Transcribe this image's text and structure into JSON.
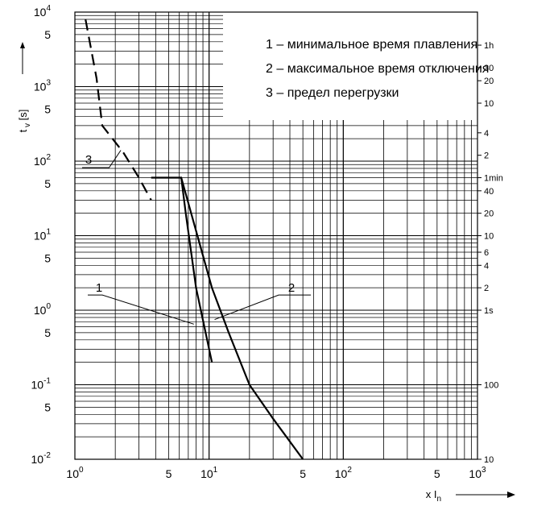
{
  "chart_data": {
    "type": "line",
    "title": "",
    "xlabel": "x I_n",
    "ylabel": "t_v [s]",
    "xscale": "log",
    "yscale": "log",
    "xlim": [
      1,
      1000
    ],
    "ylim": [
      0.01,
      10000
    ],
    "grid": true,
    "legend_position": "top-right",
    "x_ticks": [
      {
        "v": 1,
        "base": "10",
        "exp": "0"
      },
      {
        "v": 5,
        "base": "5",
        "exp": ""
      },
      {
        "v": 10,
        "base": "10",
        "exp": "1"
      },
      {
        "v": 50,
        "base": "5",
        "exp": ""
      },
      {
        "v": 100,
        "base": "10",
        "exp": "2"
      },
      {
        "v": 500,
        "base": "5",
        "exp": ""
      },
      {
        "v": 1000,
        "base": "10",
        "exp": "3"
      }
    ],
    "y_ticks": [
      {
        "v": 10000,
        "base": "10",
        "exp": "4"
      },
      {
        "v": 5000,
        "base": "5",
        "exp": ""
      },
      {
        "v": 1000,
        "base": "10",
        "exp": "3"
      },
      {
        "v": 500,
        "base": "5",
        "exp": ""
      },
      {
        "v": 100,
        "base": "10",
        "exp": "2"
      },
      {
        "v": 50,
        "base": "5",
        "exp": ""
      },
      {
        "v": 10,
        "base": "10",
        "exp": "1"
      },
      {
        "v": 5,
        "base": "5",
        "exp": ""
      },
      {
        "v": 1,
        "base": "10",
        "exp": "0"
      },
      {
        "v": 0.5,
        "base": "5",
        "exp": ""
      },
      {
        "v": 0.1,
        "base": "10",
        "exp": "-1"
      },
      {
        "v": 0.05,
        "base": "5",
        "exp": ""
      },
      {
        "v": 0.01,
        "base": "10",
        "exp": "-2"
      }
    ],
    "time_ticks": [
      {
        "v": 3600,
        "label": "1h"
      },
      {
        "v": 1800,
        "label": "30"
      },
      {
        "v": 1200,
        "label": "20"
      },
      {
        "v": 600,
        "label": "10"
      },
      {
        "v": 240,
        "label": "4"
      },
      {
        "v": 120,
        "label": "2"
      },
      {
        "v": 60,
        "label": "1min"
      },
      {
        "v": 40,
        "label": "40"
      },
      {
        "v": 20,
        "label": "20"
      },
      {
        "v": 10,
        "label": "10"
      },
      {
        "v": 6,
        "label": "6"
      },
      {
        "v": 4,
        "label": "4"
      },
      {
        "v": 2,
        "label": "2"
      },
      {
        "v": 1,
        "label": "1s"
      },
      {
        "v": 0.1,
        "label": "100"
      },
      {
        "v": 0.01,
        "label": "10"
      }
    ],
    "legend": [
      "1 – минимальное время плавления",
      "2 – максимальное время отключения",
      "3 – предел перегрузки"
    ],
    "series": [
      {
        "label": "1",
        "style": "solid",
        "x": [
          3.7,
          3.7,
          6.2,
          6.7,
          8.0,
          10.5
        ],
        "y": [
          60,
          60,
          60,
          20,
          2.0,
          0.2
        ]
      },
      {
        "label": "2",
        "style": "solid",
        "x": [
          6.2,
          10.5,
          14,
          20,
          30,
          50
        ],
        "y": [
          60,
          2.0,
          0.5,
          0.1,
          0.035,
          0.01
        ]
      },
      {
        "label": "3",
        "style": "dashed",
        "x": [
          1.2,
          1.45,
          1.6,
          2.3,
          3.0,
          3.7
        ],
        "y": [
          8000,
          1300,
          300,
          130,
          60,
          30
        ]
      }
    ],
    "callouts": [
      {
        "label": "1",
        "x": 7.7,
        "y": 0.65,
        "text_x": 1.6,
        "text_y": 1.6
      },
      {
        "label": "2",
        "x": 11.0,
        "y": 0.75,
        "text_x": 33,
        "text_y": 1.6
      },
      {
        "label": "3",
        "x": 2.2,
        "y": 140,
        "text_x": 1.3,
        "text_y": 82
      }
    ]
  }
}
